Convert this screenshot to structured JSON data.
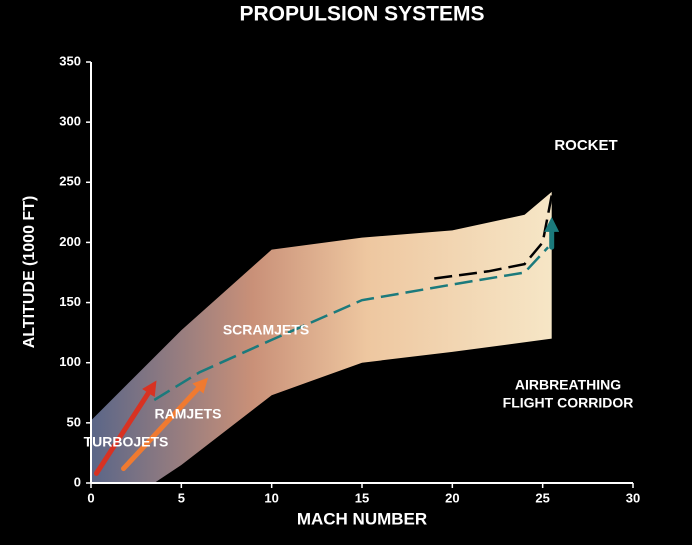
{
  "chart_data": {
    "type": "line",
    "title": "PROPULSION SYSTEMS",
    "xlabel": "MACH NUMBER",
    "ylabel": "ALTITUDE (1000 FT)",
    "xlim": [
      0,
      30
    ],
    "xticks": [
      0,
      5,
      10,
      15,
      20,
      25,
      30
    ],
    "ylim": [
      0,
      350
    ],
    "yticks": [
      0,
      50,
      100,
      150,
      200,
      250,
      300,
      350
    ],
    "band": {
      "upper": {
        "x": [
          0,
          5,
          10,
          15,
          20,
          24,
          25.5
        ],
        "values": [
          52,
          127,
          194,
          204,
          210,
          223,
          242
        ]
      },
      "lower": {
        "x": [
          0,
          3.5,
          5,
          10,
          15,
          20,
          25.5
        ],
        "values": [
          0,
          0,
          15,
          73,
          100,
          109,
          120
        ]
      }
    },
    "series": [
      {
        "color": "#000000",
        "dash": true,
        "x": [
          19,
          22,
          24,
          25,
          25.5
        ],
        "values": [
          170,
          176,
          182,
          200,
          239
        ]
      },
      {
        "color": "#1b7a7c",
        "dash": true,
        "x": [
          3.5,
          6,
          10,
          15,
          20,
          24,
          25.3
        ],
        "values": [
          69,
          92,
          119,
          152,
          165,
          175,
          196
        ]
      },
      {
        "color": "#d83222",
        "arrow": true,
        "x": [
          0.3,
          3.4
        ],
        "values": [
          8,
          80
        ]
      },
      {
        "color": "#f07a30",
        "arrow": true,
        "x": [
          1.8,
          6.2
        ],
        "values": [
          12,
          83
        ]
      },
      {
        "color": "#1b7a7c",
        "arrow": true,
        "x": [
          25.5,
          25.5
        ],
        "values": [
          196,
          215
        ]
      }
    ],
    "annotations": [
      "ROCKET",
      "SCRAMJETS",
      "RAMJETS",
      "TURBOJETS",
      "AIRBREATHING",
      "FLIGHT CORRIDOR"
    ]
  }
}
